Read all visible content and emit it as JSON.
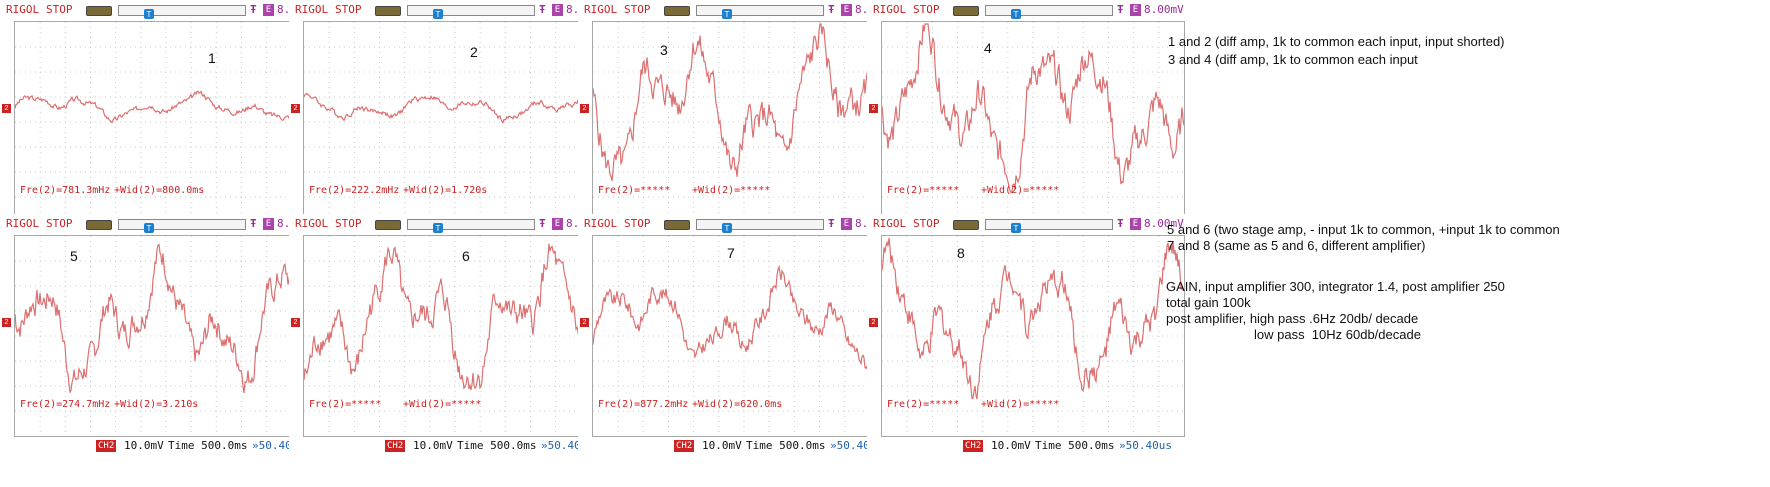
{
  "common": {
    "brand": "RIGOL",
    "state": "STOP",
    "trig_icon": "Ŧ",
    "edge": "E",
    "trig_level": "8.00mV",
    "ch_marker": "2",
    "t_marker": "T",
    "ch_chip": "CH2",
    "vdiv": "10.0mV",
    "timebase": "Time 500.0ms",
    "offset": "»50.40us",
    "colors": {
      "brand": "#cc2222",
      "trace": "#dd7070",
      "grid": "#cccccc",
      "trigger": "#9a2a9a",
      "offset": "#1f5fae"
    }
  },
  "screens": [
    {
      "label": "1",
      "freq": "Fre(2)=781.3mHz",
      "width": "+Wid(2)=800.0ms",
      "pattern": 0,
      "amp": 0.16
    },
    {
      "label": "2",
      "freq": "Fre(2)=222.2mHz",
      "width": "+Wid(2)=1.720s",
      "pattern": 1,
      "amp": 0.16
    },
    {
      "label": "3",
      "freq": "Fre(2)=*****",
      "width": "+Wid(2)=*****",
      "pattern": 2,
      "amp": 0.92
    },
    {
      "label": "4",
      "freq": "Fre(2)=*****",
      "width": "+Wid(2)=*****",
      "pattern": 3,
      "amp": 0.95
    },
    {
      "label": "5",
      "freq": "Fre(2)=274.7mHz",
      "width": "+Wid(2)=3.210s",
      "pattern": 4,
      "amp": 0.8
    },
    {
      "label": "6",
      "freq": "Fre(2)=*****",
      "width": "+Wid(2)=*****",
      "pattern": 5,
      "amp": 0.85
    },
    {
      "label": "7",
      "freq": "Fre(2)=877.2mHz",
      "width": "+Wid(2)=620.0ms",
      "pattern": 6,
      "amp": 0.55
    },
    {
      "label": "8",
      "freq": "Fre(2)=*****",
      "width": "+Wid(2)=*****",
      "pattern": 7,
      "amp": 0.85
    }
  ],
  "notes": {
    "top1": "1 and 2 (diff amp, 1k to common each input, input shorted)",
    "top2": "3 and 4 (diff amp, 1k to common each input",
    "mid1": "5 and 6 (two stage amp, - input 1k to common, +input 1k to common",
    "mid2": "7 and 8 (same as 5 and 6, different amplifier)",
    "gain1": "GAIN, input amplifier 300, integrator 1.4, post amplifier 250",
    "gain2": "total gain 100k",
    "gain3": "post amplifier, high pass .6Hz 20db/ decade",
    "gain4": "low pass  10Hz 60db/decade"
  }
}
